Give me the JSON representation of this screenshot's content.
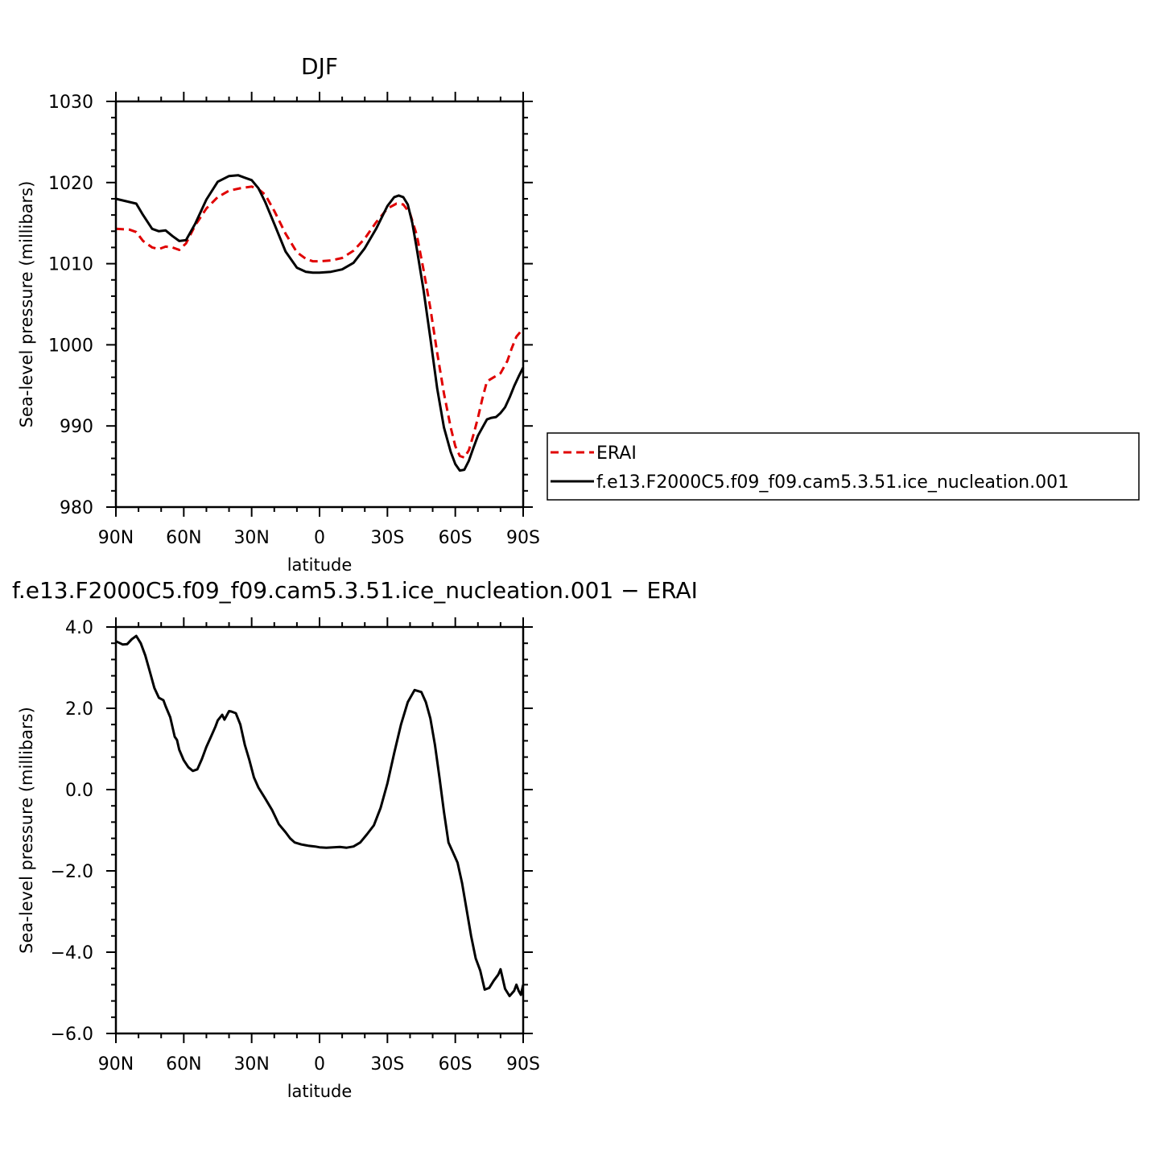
{
  "chart_data": [
    {
      "type": "line",
      "title": "DJF",
      "xlabel": "latitude",
      "ylabel": "Sea-level pressure (millibars)",
      "xlim": [
        -90,
        90
      ],
      "ylim": [
        980,
        1030
      ],
      "x_ticks": [
        -90,
        -60,
        -30,
        0,
        30,
        60,
        90
      ],
      "x_tick_labels": [
        "90N",
        "60N",
        "30N",
        "0",
        "30S",
        "60S",
        "90S"
      ],
      "y_ticks": [
        980,
        990,
        1000,
        1010,
        1020,
        1030
      ],
      "y_tick_labels": [
        "980",
        "990",
        "1000",
        "1010",
        "1020",
        "1030"
      ],
      "legend": {
        "placement": "right, outside plot"
      },
      "series": [
        {
          "name": "ERAI",
          "color": "#e00000",
          "dash": "dashed",
          "x": [
            -90,
            -84,
            -81,
            -78,
            -74,
            -71,
            -68,
            -65,
            -62,
            -59,
            -55,
            -50,
            -45,
            -40,
            -35,
            -30,
            -27,
            -24,
            -20,
            -15,
            -10,
            -6,
            -3,
            0,
            5,
            10,
            15,
            20,
            25,
            30,
            34,
            37,
            40,
            43,
            46,
            49,
            52,
            55,
            58,
            60,
            62,
            64,
            66,
            68,
            70,
            72,
            74,
            77,
            80,
            83,
            85,
            87,
            90
          ],
          "values": [
            1014.3,
            1014.2,
            1013.9,
            1012.8,
            1012.0,
            1011.8,
            1012.1,
            1012.0,
            1011.7,
            1012.5,
            1014.7,
            1016.8,
            1018.2,
            1019.0,
            1019.3,
            1019.5,
            1019.2,
            1018.5,
            1016.5,
            1013.7,
            1011.4,
            1010.6,
            1010.3,
            1010.3,
            1010.4,
            1010.7,
            1011.6,
            1013.1,
            1015.1,
            1016.8,
            1017.4,
            1017.3,
            1016.2,
            1013.5,
            1009.2,
            1004.5,
            999.0,
            994.0,
            989.8,
            987.5,
            986.3,
            986.1,
            987.0,
            988.9,
            991.0,
            993.4,
            995.5,
            996.0,
            996.5,
            998.0,
            999.6,
            1001.0,
            1002.0
          ]
        },
        {
          "name": "f.e13.F2000C5.f09_f09.cam5.3.51.ice_nucleation.001",
          "color": "#000000",
          "dash": "solid",
          "x": [
            -90,
            -84,
            -81,
            -78,
            -74,
            -71,
            -68,
            -65,
            -62,
            -59,
            -55,
            -50,
            -45,
            -40,
            -36,
            -33,
            -30,
            -27,
            -24,
            -20,
            -15,
            -10,
            -6,
            -3,
            0,
            5,
            10,
            15,
            20,
            25,
            30,
            33,
            35,
            37,
            39,
            41,
            43,
            46,
            49,
            52,
            55,
            58,
            60,
            62,
            64,
            66,
            68,
            70,
            72,
            74,
            76,
            78,
            80,
            82,
            84,
            86,
            88,
            90
          ],
          "values": [
            1018.0,
            1017.6,
            1017.4,
            1016.0,
            1014.3,
            1014.0,
            1014.1,
            1013.4,
            1012.8,
            1012.9,
            1014.9,
            1017.9,
            1020.1,
            1020.8,
            1020.9,
            1020.6,
            1020.3,
            1019.3,
            1017.6,
            1014.9,
            1011.5,
            1009.5,
            1009.0,
            1008.9,
            1008.9,
            1009.0,
            1009.3,
            1010.1,
            1011.9,
            1014.3,
            1017.1,
            1018.2,
            1018.4,
            1018.2,
            1017.3,
            1015.0,
            1011.8,
            1006.7,
            1000.8,
            994.6,
            989.8,
            986.8,
            985.3,
            984.5,
            984.6,
            985.7,
            987.3,
            988.8,
            989.8,
            990.8,
            991.0,
            991.1,
            991.6,
            992.3,
            993.5,
            994.9,
            996.1,
            997.2
          ]
        }
      ]
    },
    {
      "type": "line",
      "title": "f.e13.F2000C5.f09_f09.cam5.3.51.ice_nucleation.001 − ERAI",
      "xlabel": "latitude",
      "ylabel": "Sea-level pressure (millibars)",
      "xlim": [
        -90,
        90
      ],
      "ylim": [
        -6,
        4
      ],
      "x_ticks": [
        -90,
        -60,
        -30,
        0,
        30,
        60,
        90
      ],
      "x_tick_labels": [
        "90N",
        "60N",
        "30N",
        "0",
        "30S",
        "60S",
        "90S"
      ],
      "y_ticks": [
        -6,
        -4,
        -2,
        0,
        2,
        4
      ],
      "y_tick_labels": [
        "−6.0",
        "−4.0",
        "−2.0",
        "0.0",
        "2.0",
        "4.0"
      ],
      "series": [
        {
          "name": "",
          "color": "#000000",
          "dash": "solid",
          "x": [
            -90,
            -87,
            -85,
            -83,
            -81,
            -79,
            -77,
            -75,
            -73,
            -71,
            -69,
            -68,
            -66,
            -64,
            -63,
            -62,
            -60,
            -58,
            -56,
            -54,
            -52,
            -50,
            -48,
            -46,
            -45,
            -43,
            -42,
            -40,
            -39,
            -37,
            -35,
            -33,
            -31,
            -29,
            -27,
            -24,
            -21,
            -18,
            -15,
            -13,
            -11,
            -8,
            -5,
            -2,
            0,
            3,
            6,
            9,
            12,
            15,
            18,
            21,
            24,
            27,
            30,
            33,
            36,
            39,
            42,
            45,
            47,
            49,
            51,
            53,
            55,
            57,
            59,
            61,
            63,
            65,
            67,
            69,
            71,
            73,
            75,
            77,
            79,
            80,
            82,
            84,
            86,
            87,
            88,
            89,
            90
          ],
          "values": [
            3.65,
            3.57,
            3.58,
            3.7,
            3.78,
            3.6,
            3.3,
            2.9,
            2.5,
            2.26,
            2.2,
            2.05,
            1.78,
            1.3,
            1.22,
            0.98,
            0.72,
            0.55,
            0.46,
            0.5,
            0.75,
            1.05,
            1.3,
            1.55,
            1.7,
            1.84,
            1.72,
            1.93,
            1.92,
            1.88,
            1.6,
            1.1,
            0.72,
            0.3,
            0.05,
            -0.22,
            -0.5,
            -0.85,
            -1.05,
            -1.2,
            -1.3,
            -1.35,
            -1.38,
            -1.4,
            -1.42,
            -1.43,
            -1.42,
            -1.41,
            -1.43,
            -1.4,
            -1.3,
            -1.1,
            -0.88,
            -0.45,
            0.15,
            0.9,
            1.6,
            2.15,
            2.45,
            2.4,
            2.15,
            1.75,
            1.1,
            0.3,
            -0.55,
            -1.3,
            -1.55,
            -1.8,
            -2.3,
            -2.95,
            -3.6,
            -4.15,
            -4.45,
            -4.92,
            -4.88,
            -4.7,
            -4.55,
            -4.42,
            -4.9,
            -5.08,
            -4.95,
            -4.8,
            -4.95,
            -5.05,
            -4.8
          ]
        }
      ]
    }
  ]
}
